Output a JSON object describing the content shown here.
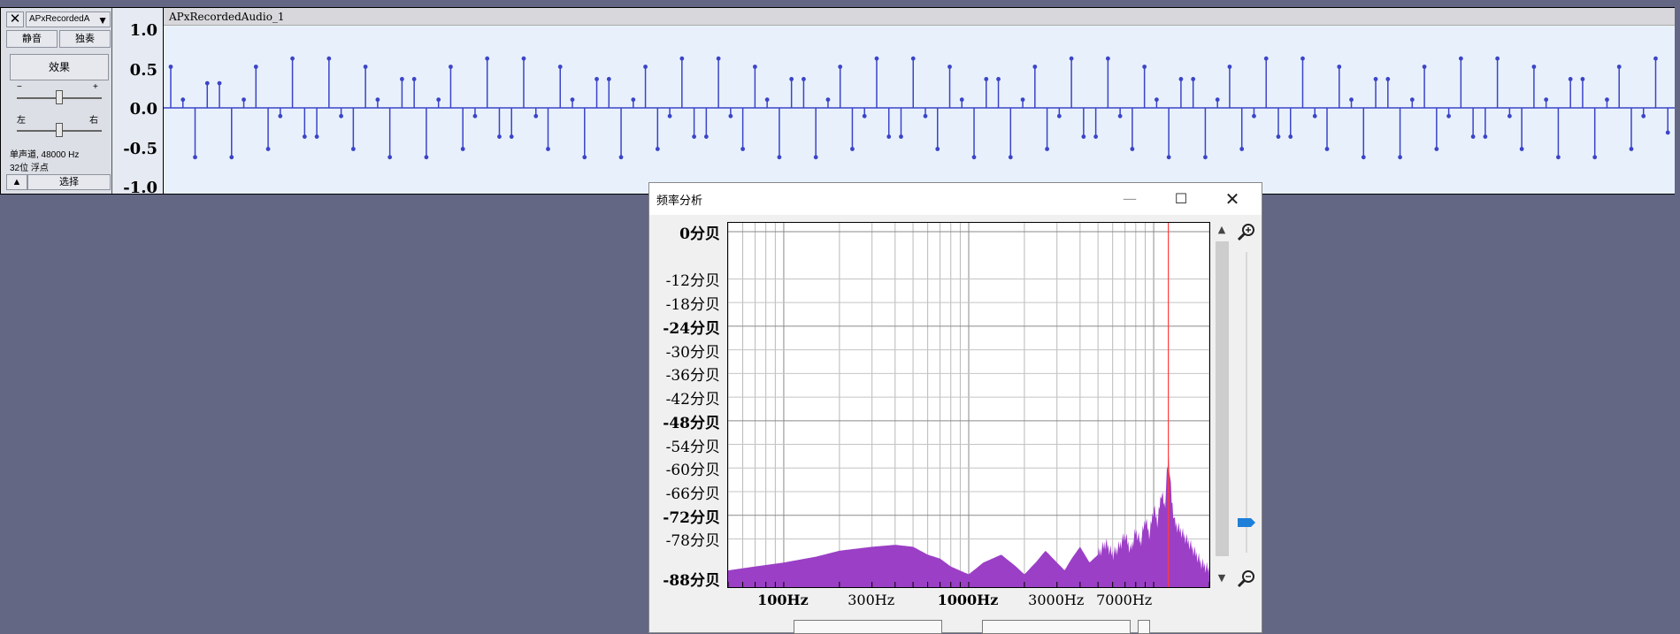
{
  "track": {
    "close_label": "✕",
    "name": "APxRecordedA",
    "mute_label": "静音",
    "solo_label": "独奏",
    "effects_label": "效果",
    "gain_minus": "−",
    "gain_plus": "+",
    "pan_left": "左",
    "pan_right": "右",
    "format_line1": "单声道, 48000 Hz",
    "format_line2": "32位 浮点",
    "collapse_label": "▲",
    "select_label": "选择",
    "gain_level": 0.5,
    "pan_level": 0.5
  },
  "ruler": {
    "labels": [
      "1.0",
      "0.5",
      "0.0",
      "-0.5",
      "-1.0"
    ]
  },
  "waveform": {
    "clip_title": "APxRecordedAudio_1",
    "color": "#3b44c8",
    "samples": [
      0.5,
      0.1,
      -0.6,
      0.3,
      0.3,
      -0.6,
      0.1,
      0.5,
      -0.5,
      -0.1,
      0.6,
      -0.35,
      -0.35,
      0.6,
      -0.1,
      -0.5,
      0.5,
      0.1,
      -0.6,
      0.35,
      0.35,
      -0.6,
      0.1,
      0.5,
      -0.5,
      -0.1,
      0.6,
      -0.35,
      -0.35,
      0.6,
      -0.1,
      -0.5,
      0.5,
      0.1,
      -0.6,
      0.35,
      0.35,
      -0.6,
      0.1,
      0.5,
      -0.5,
      -0.1,
      0.6,
      -0.35,
      -0.35,
      0.6,
      -0.1,
      -0.5,
      0.5,
      0.1,
      -0.6,
      0.35,
      0.35,
      -0.6,
      0.1,
      0.5,
      -0.5,
      -0.1,
      0.6,
      -0.35,
      -0.35,
      0.6,
      -0.1,
      -0.5,
      0.5,
      0.1,
      -0.6,
      0.35,
      0.35,
      -0.6,
      0.1,
      0.5,
      -0.5,
      -0.1,
      0.6,
      -0.35,
      -0.35,
      0.6,
      -0.1,
      -0.5,
      0.5,
      0.1,
      -0.6,
      0.35,
      0.35,
      -0.6,
      0.1,
      0.5,
      -0.5,
      -0.1,
      0.6,
      -0.35,
      -0.35,
      0.6,
      -0.1,
      -0.5,
      0.5,
      0.1,
      -0.6,
      0.35,
      0.35,
      -0.6,
      0.1,
      0.5,
      -0.5,
      -0.1,
      0.6,
      -0.35,
      -0.35,
      0.6,
      -0.1,
      -0.5,
      0.5,
      0.1,
      -0.6,
      0.35,
      0.35,
      -0.6,
      0.1,
      0.5,
      -0.5,
      -0.1,
      0.6,
      -0.3
    ]
  },
  "dialog": {
    "title": "频率分析",
    "minimize": "—",
    "maximize": "☐",
    "close": "✕",
    "db_labels": [
      {
        "text": "0分贝",
        "bold": true,
        "db": 0
      },
      {
        "text": "-12分贝",
        "bold": false,
        "db": -12
      },
      {
        "text": "-18分贝",
        "bold": false,
        "db": -18
      },
      {
        "text": "-24分贝",
        "bold": true,
        "db": -24
      },
      {
        "text": "-30分贝",
        "bold": false,
        "db": -30
      },
      {
        "text": "-36分贝",
        "bold": false,
        "db": -36
      },
      {
        "text": "-42分贝",
        "bold": false,
        "db": -42
      },
      {
        "text": "-48分贝",
        "bold": true,
        "db": -48
      },
      {
        "text": "-54分贝",
        "bold": false,
        "db": -54
      },
      {
        "text": "-60分贝",
        "bold": false,
        "db": -60
      },
      {
        "text": "-66分贝",
        "bold": false,
        "db": -66
      },
      {
        "text": "-72分贝",
        "bold": true,
        "db": -72
      },
      {
        "text": "-78分贝",
        "bold": false,
        "db": -78
      },
      {
        "text": "-88分贝",
        "bold": true,
        "db": -88
      }
    ],
    "hz_labels": [
      {
        "text": "100Hz",
        "bold": true,
        "hz": 100
      },
      {
        "text": "300Hz",
        "bold": false,
        "hz": 300
      },
      {
        "text": "1000Hz",
        "bold": true,
        "hz": 1000
      },
      {
        "text": "3000Hz",
        "bold": false,
        "hz": 3000
      },
      {
        "text": "7000Hz",
        "bold": false,
        "hz": 7000
      }
    ],
    "scroll_up": "▲",
    "scroll_down": "▼",
    "zoom_level": 0.9,
    "spectrum_color": "#9b3fc6",
    "cursor_color": "#ff3b3b"
  },
  "chart_data": {
    "type": "area",
    "x_scale": "log",
    "xlim": [
      50,
      20000
    ],
    "ylim": [
      -88,
      0
    ],
    "cursor_hz": 12000,
    "x": [
      50,
      70,
      100,
      150,
      200,
      300,
      400,
      500,
      600,
      700,
      800,
      1000,
      1200,
      1500,
      1800,
      2000,
      2300,
      2600,
      3000,
      3300,
      3600,
      4000,
      4500,
      5000,
      5500,
      6000,
      6500,
      7000,
      7500,
      8000,
      8500,
      9000,
      9500,
      10000,
      10500,
      11000,
      11500,
      12000,
      12500,
      13000,
      14000,
      15000,
      16000,
      17000,
      18000,
      19000,
      20000
    ],
    "y": [
      -86,
      -85,
      -84,
      -82.5,
      -81,
      -80,
      -79.5,
      -80,
      -82,
      -83,
      -85,
      -87,
      -84,
      -82,
      -85,
      -87,
      -84,
      -81,
      -84,
      -86,
      -83,
      -80,
      -84,
      -82,
      -79,
      -82,
      -80,
      -77,
      -81,
      -76,
      -79,
      -73,
      -77,
      -70,
      -74,
      -66,
      -70,
      -56,
      -68,
      -74,
      -76,
      -78,
      -80,
      -82,
      -84,
      -85,
      -86
    ]
  }
}
